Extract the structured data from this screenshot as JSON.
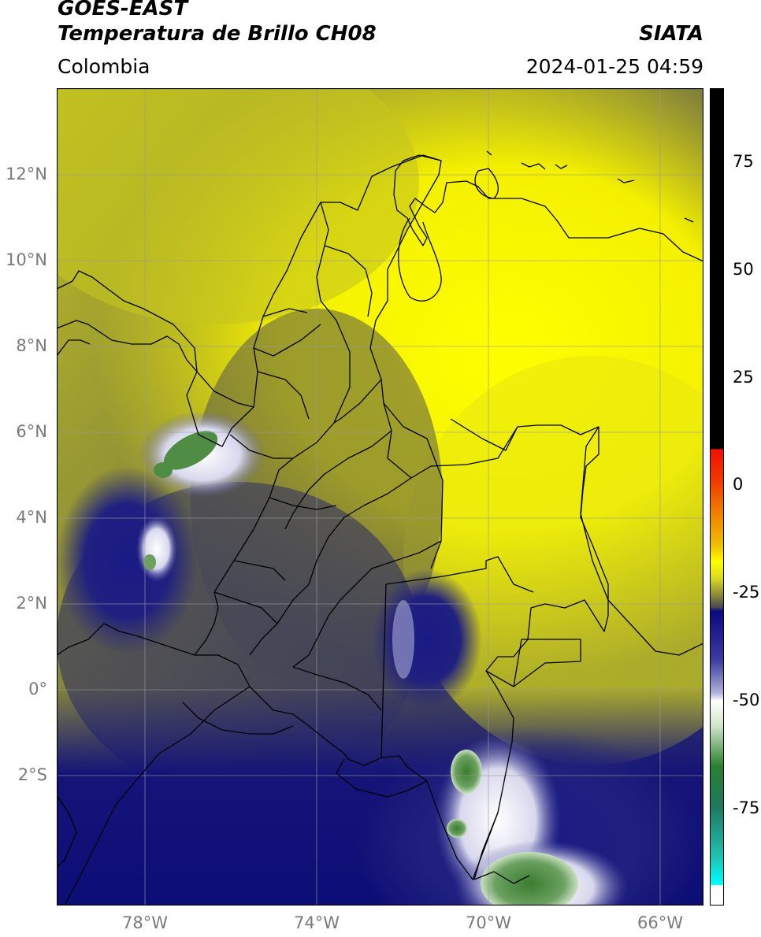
{
  "header": {
    "satellite": "GOES-EAST",
    "product": "Temperatura de Brillo CH08",
    "region": "Colombia",
    "agency": "SIATA",
    "timestamp": "2024-01-25 04:59"
  },
  "map": {
    "lat_labels": [
      "12°N",
      "10°N",
      "8°N",
      "6°N",
      "4°N",
      "2°N",
      "0°",
      "2°S"
    ],
    "lon_labels": [
      "78°W",
      "74°W",
      "70°W",
      "66°W"
    ],
    "extent": {
      "lon_min": -80,
      "lon_max": -65,
      "lat_min": -5,
      "lat_max": 14
    },
    "gridlines": true
  },
  "colorbar": {
    "ticks": [
      "75",
      "50",
      "25",
      "0",
      "-25",
      "-50",
      "-75"
    ],
    "colors": {
      "black": "#000000",
      "red": "#f01000",
      "orange": "#f08000",
      "yellow": "#ffff00",
      "olive": "#4a4a30",
      "navy": "#0a0a80",
      "white": "#ffffff",
      "green": "#2a8030",
      "teal": "#20c0b0",
      "cyan": "#00ffff"
    }
  }
}
